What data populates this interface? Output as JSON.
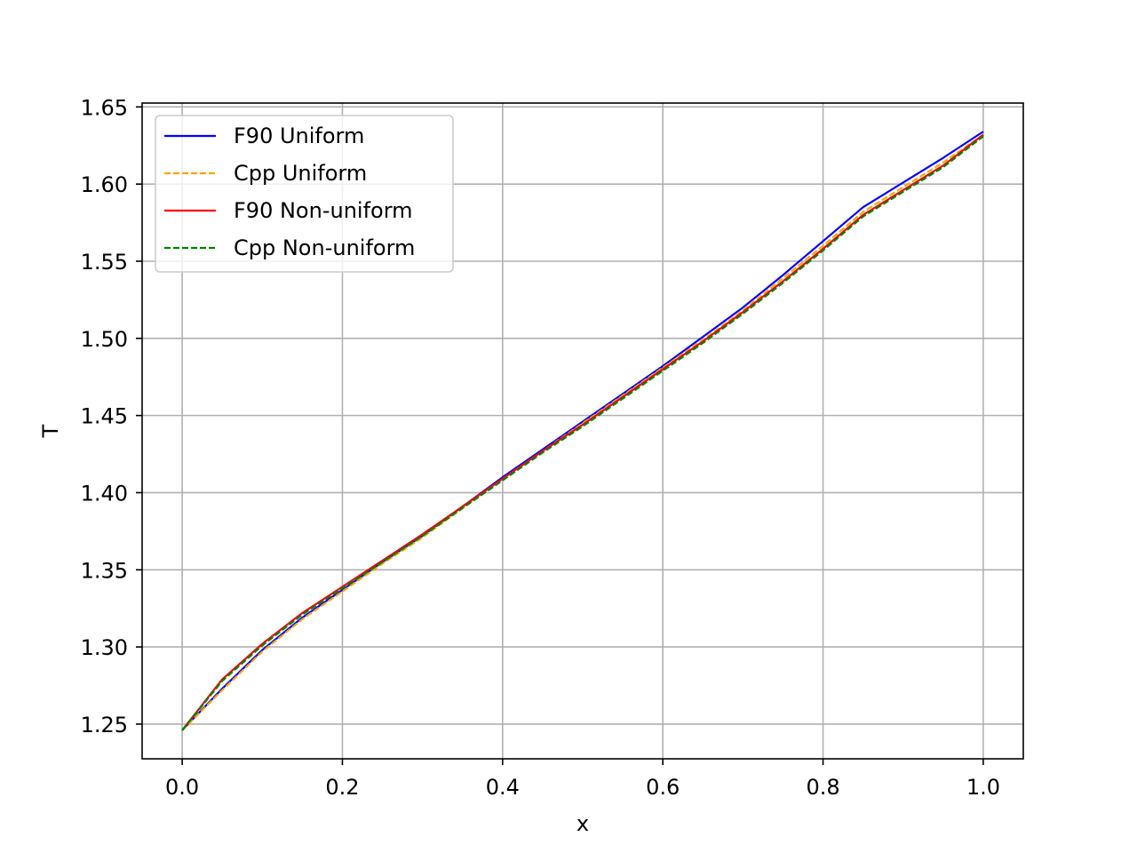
{
  "chart_data": {
    "type": "line",
    "title": "",
    "xlabel": "x",
    "ylabel": "T",
    "xlim": [
      -0.05,
      1.05
    ],
    "ylim": [
      1.2275,
      1.6525
    ],
    "xticks": [
      0.0,
      0.2,
      0.4,
      0.6,
      0.8,
      1.0
    ],
    "xtick_labels": [
      "0.0",
      "0.2",
      "0.4",
      "0.6",
      "0.8",
      "1.0"
    ],
    "yticks": [
      1.25,
      1.3,
      1.35,
      1.4,
      1.45,
      1.5,
      1.55,
      1.6,
      1.65
    ],
    "ytick_labels": [
      "1.25",
      "1.30",
      "1.35",
      "1.40",
      "1.45",
      "1.50",
      "1.55",
      "1.60",
      "1.65"
    ],
    "grid": true,
    "legend": "top-left",
    "series": [
      {
        "name": "F90 Uniform",
        "color": "#0000ff",
        "dash": "solid",
        "x": [
          0.0,
          0.05,
          0.1,
          0.15,
          0.2,
          0.25,
          0.3,
          0.35,
          0.4,
          0.45,
          0.5,
          0.55,
          0.6,
          0.65,
          0.7,
          0.75,
          0.8,
          0.85,
          0.9,
          0.95,
          1.0
        ],
        "y": [
          1.246,
          1.273,
          1.298,
          1.319,
          1.337,
          1.355,
          1.372,
          1.391,
          1.41,
          1.428,
          1.446,
          1.464,
          1.482,
          1.501,
          1.52,
          1.541,
          1.563,
          1.585,
          1.601,
          1.617,
          1.634
        ]
      },
      {
        "name": "Cpp Uniform",
        "color": "#ffa500",
        "dash": "dashed",
        "x": [
          0.0,
          0.05,
          0.1,
          0.15,
          0.2,
          0.25,
          0.3,
          0.35,
          0.4,
          0.45,
          0.5,
          0.55,
          0.6,
          0.65,
          0.7,
          0.75,
          0.8,
          0.85,
          0.9,
          0.95,
          1.0
        ],
        "y": [
          1.246,
          1.272,
          1.297,
          1.318,
          1.336,
          1.354,
          1.371,
          1.39,
          1.409,
          1.427,
          1.445,
          1.463,
          1.481,
          1.499,
          1.518,
          1.539,
          1.56,
          1.582,
          1.598,
          1.614,
          1.632
        ]
      },
      {
        "name": "F90 Non-uniform",
        "color": "#ff0000",
        "dash": "solid",
        "x": [
          0.0,
          0.05,
          0.1,
          0.15,
          0.2,
          0.25,
          0.3,
          0.35,
          0.4,
          0.45,
          0.5,
          0.55,
          0.6,
          0.65,
          0.7,
          0.75,
          0.8,
          0.85,
          0.9,
          0.95,
          1.0
        ],
        "y": [
          1.246,
          1.279,
          1.302,
          1.322,
          1.339,
          1.356,
          1.373,
          1.391,
          1.409,
          1.427,
          1.444,
          1.462,
          1.48,
          1.498,
          1.517,
          1.537,
          1.558,
          1.58,
          1.596,
          1.612,
          1.632
        ]
      },
      {
        "name": "Cpp Non-uniform",
        "color": "#008000",
        "dash": "dashed",
        "x": [
          0.0,
          0.05,
          0.1,
          0.15,
          0.2,
          0.25,
          0.3,
          0.35,
          0.4,
          0.45,
          0.5,
          0.55,
          0.6,
          0.65,
          0.7,
          0.75,
          0.8,
          0.85,
          0.9,
          0.95,
          1.0
        ],
        "y": [
          1.246,
          1.278,
          1.301,
          1.321,
          1.338,
          1.355,
          1.372,
          1.39,
          1.408,
          1.426,
          1.443,
          1.461,
          1.479,
          1.497,
          1.516,
          1.536,
          1.557,
          1.579,
          1.595,
          1.611,
          1.631
        ]
      }
    ]
  }
}
